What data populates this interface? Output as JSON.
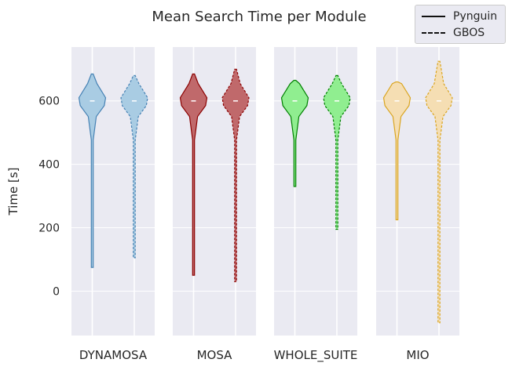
{
  "chart_data": {
    "type": "violin",
    "title": "Mean Search Time per Module",
    "ylabel": "Time [s]",
    "xlabel": "",
    "ylim": [
      -140,
      770
    ],
    "yticks": [
      "0",
      "200",
      "400",
      "600"
    ],
    "ytick_values": [
      0,
      200,
      400,
      600
    ],
    "grid": true,
    "legend_position": "top-right",
    "legend": [
      {
        "label": "Pynguin",
        "style": "solid"
      },
      {
        "label": "GBOS",
        "style": "dashed"
      }
    ],
    "panels": [
      {
        "name": "DYNAMOSA",
        "color": "#4682b4",
        "fill": "#a9cce3",
        "series": [
          {
            "name": "Pynguin",
            "min": 75,
            "max": 685,
            "median": 600
          },
          {
            "name": "GBOS",
            "min": 105,
            "max": 680,
            "median": 600
          }
        ]
      },
      {
        "name": "MOSA",
        "color": "#8b0000",
        "fill": "#c0696b",
        "series": [
          {
            "name": "Pynguin",
            "min": 50,
            "max": 685,
            "median": 600
          },
          {
            "name": "GBOS",
            "min": 30,
            "max": 700,
            "median": 600
          }
        ]
      },
      {
        "name": "WHOLE_SUITE",
        "color": "#008000",
        "fill": "#90ee90",
        "series": [
          {
            "name": "Pynguin",
            "min": 330,
            "max": 665,
            "median": 600
          },
          {
            "name": "GBOS",
            "min": 195,
            "max": 680,
            "median": 600
          }
        ]
      },
      {
        "name": "MIO",
        "color": "#daa520",
        "fill": "#f5deb3",
        "series": [
          {
            "name": "Pynguin",
            "min": 225,
            "max": 660,
            "median": 600
          },
          {
            "name": "GBOS",
            "min": -100,
            "max": 725,
            "median": 600
          }
        ]
      }
    ]
  }
}
